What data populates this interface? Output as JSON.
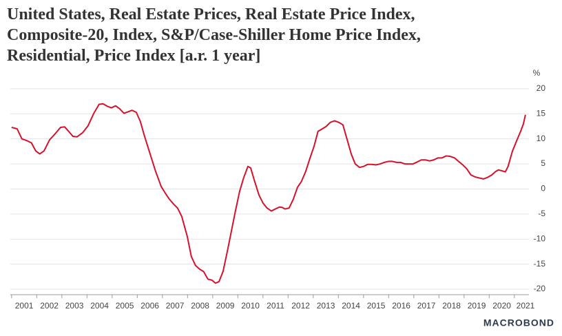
{
  "chart_data": {
    "type": "line",
    "title_lines": [
      "United States, Real Estate Prices, Real Estate Price Index,",
      "Composite-20, Index, S&P/Case-Shiller Home Price Index,",
      "Residential, Price Index [a.r. 1 year]"
    ],
    "y_unit": "%",
    "source_logo": "MACROBOND",
    "xlim": [
      2000.95,
      2021.58
    ],
    "xticks": [
      2001,
      2002,
      2003,
      2004,
      2005,
      2006,
      2007,
      2008,
      2009,
      2010,
      2011,
      2012,
      2013,
      2014,
      2015,
      2016,
      2017,
      2018,
      2019,
      2020,
      2021
    ],
    "ylim": [
      -21.1,
      21.5
    ],
    "yticks": [
      20,
      15,
      10,
      5,
      0,
      -5,
      -10,
      -15,
      -20
    ],
    "grid": true,
    "series": [
      {
        "name": "Composite-20",
        "color": "#d7102a",
        "x": [
          2001.0,
          2001.22,
          2001.41,
          2001.63,
          2001.79,
          2001.96,
          2002.12,
          2002.29,
          2002.51,
          2002.73,
          2002.95,
          2003.11,
          2003.27,
          2003.44,
          2003.6,
          2003.82,
          2004.04,
          2004.26,
          2004.48,
          2004.64,
          2004.81,
          2004.97,
          2005.14,
          2005.3,
          2005.47,
          2005.63,
          2005.79,
          2005.96,
          2006.12,
          2006.29,
          2006.51,
          2006.73,
          2006.95,
          2007.11,
          2007.27,
          2007.44,
          2007.6,
          2007.77,
          2007.99,
          2008.15,
          2008.32,
          2008.48,
          2008.64,
          2008.81,
          2008.97,
          2009.11,
          2009.25,
          2009.41,
          2009.58,
          2009.74,
          2009.9,
          2010.07,
          2010.23,
          2010.4,
          2010.51,
          2010.67,
          2010.84,
          2011.0,
          2011.16,
          2011.33,
          2011.49,
          2011.66,
          2011.77,
          2011.88,
          2012.04,
          2012.21,
          2012.37,
          2012.53,
          2012.7,
          2012.86,
          2013.03,
          2013.19,
          2013.36,
          2013.52,
          2013.68,
          2013.85,
          2014.01,
          2014.18,
          2014.34,
          2014.51,
          2014.67,
          2014.84,
          2015.0,
          2015.16,
          2015.33,
          2015.49,
          2015.66,
          2015.82,
          2015.99,
          2016.15,
          2016.32,
          2016.48,
          2016.64,
          2016.81,
          2016.97,
          2017.14,
          2017.3,
          2017.47,
          2017.63,
          2017.79,
          2017.96,
          2018.12,
          2018.29,
          2018.45,
          2018.62,
          2018.78,
          2018.95,
          2019.11,
          2019.27,
          2019.44,
          2019.6,
          2019.77,
          2019.93,
          2020.1,
          2020.26,
          2020.37,
          2020.53,
          2020.64,
          2020.75,
          2020.92,
          2021.08,
          2021.25,
          2021.36,
          2021.44
        ],
        "values": [
          12.3,
          12.0,
          10.0,
          9.6,
          9.2,
          7.6,
          7.0,
          7.6,
          9.8,
          11.0,
          12.3,
          12.4,
          11.5,
          10.5,
          10.4,
          11.2,
          12.6,
          15.0,
          16.9,
          17.0,
          16.5,
          16.2,
          16.6,
          16.0,
          15.1,
          15.4,
          15.7,
          15.3,
          13.5,
          10.5,
          7.0,
          3.5,
          0.5,
          -0.8,
          -2.0,
          -3.0,
          -3.8,
          -5.5,
          -9.5,
          -13.5,
          -15.3,
          -16.0,
          -16.5,
          -18.0,
          -18.2,
          -18.8,
          -18.5,
          -16.5,
          -12.5,
          -8.5,
          -4.5,
          -0.5,
          2.2,
          4.5,
          4.2,
          1.5,
          -1.2,
          -2.8,
          -3.8,
          -4.4,
          -4.0,
          -3.6,
          -3.7,
          -4.0,
          -3.8,
          -2.0,
          0.3,
          1.5,
          3.5,
          6.0,
          8.5,
          11.5,
          12.0,
          12.5,
          13.3,
          13.6,
          13.3,
          12.8,
          10.0,
          7.0,
          5.0,
          4.3,
          4.5,
          4.9,
          4.9,
          4.8,
          5.0,
          5.3,
          5.5,
          5.5,
          5.3,
          5.3,
          5.0,
          5.0,
          5.0,
          5.4,
          5.8,
          5.8,
          5.6,
          5.8,
          6.2,
          6.2,
          6.6,
          6.5,
          6.2,
          5.5,
          4.8,
          4.0,
          2.8,
          2.4,
          2.2,
          2.0,
          2.3,
          2.8,
          3.5,
          3.8,
          3.6,
          3.4,
          4.5,
          7.5,
          9.5,
          11.5,
          13.0,
          14.8
        ]
      }
    ]
  }
}
